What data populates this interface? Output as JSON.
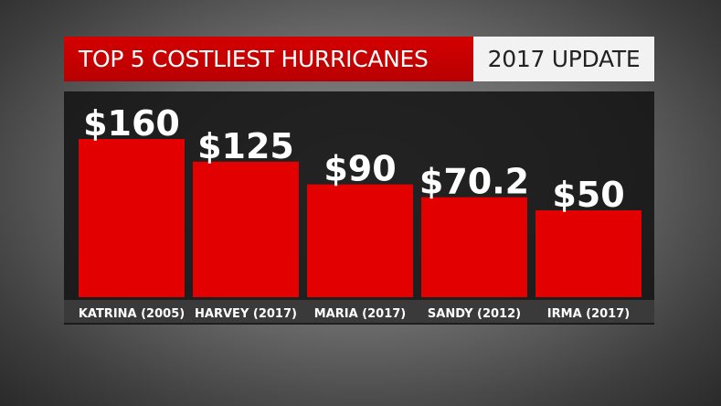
{
  "header": {
    "title": "TOP 5 COSTLIEST HURRICANES",
    "badge": "2017 UPDATE"
  },
  "colors": {
    "bar": "#e30000",
    "title_bg": "#c80000",
    "panel": "#1a1a1a"
  },
  "chart_data": {
    "type": "bar",
    "title": "TOP 5 COSTLIEST HURRICANES",
    "subtitle": "2017 UPDATE",
    "categories": [
      "KATRINA (2005)",
      "HARVEY (2017)",
      "MARIA (2017)",
      "SANDY (2012)",
      "IRMA (2017)"
    ],
    "values": [
      160,
      125,
      90,
      70.2,
      50
    ],
    "data_labels": [
      "$160",
      "$125",
      "$90",
      "$70.2",
      "$50"
    ],
    "xlabel": "",
    "ylabel": "",
    "ylim": [
      -84,
      160
    ],
    "grid": false
  }
}
